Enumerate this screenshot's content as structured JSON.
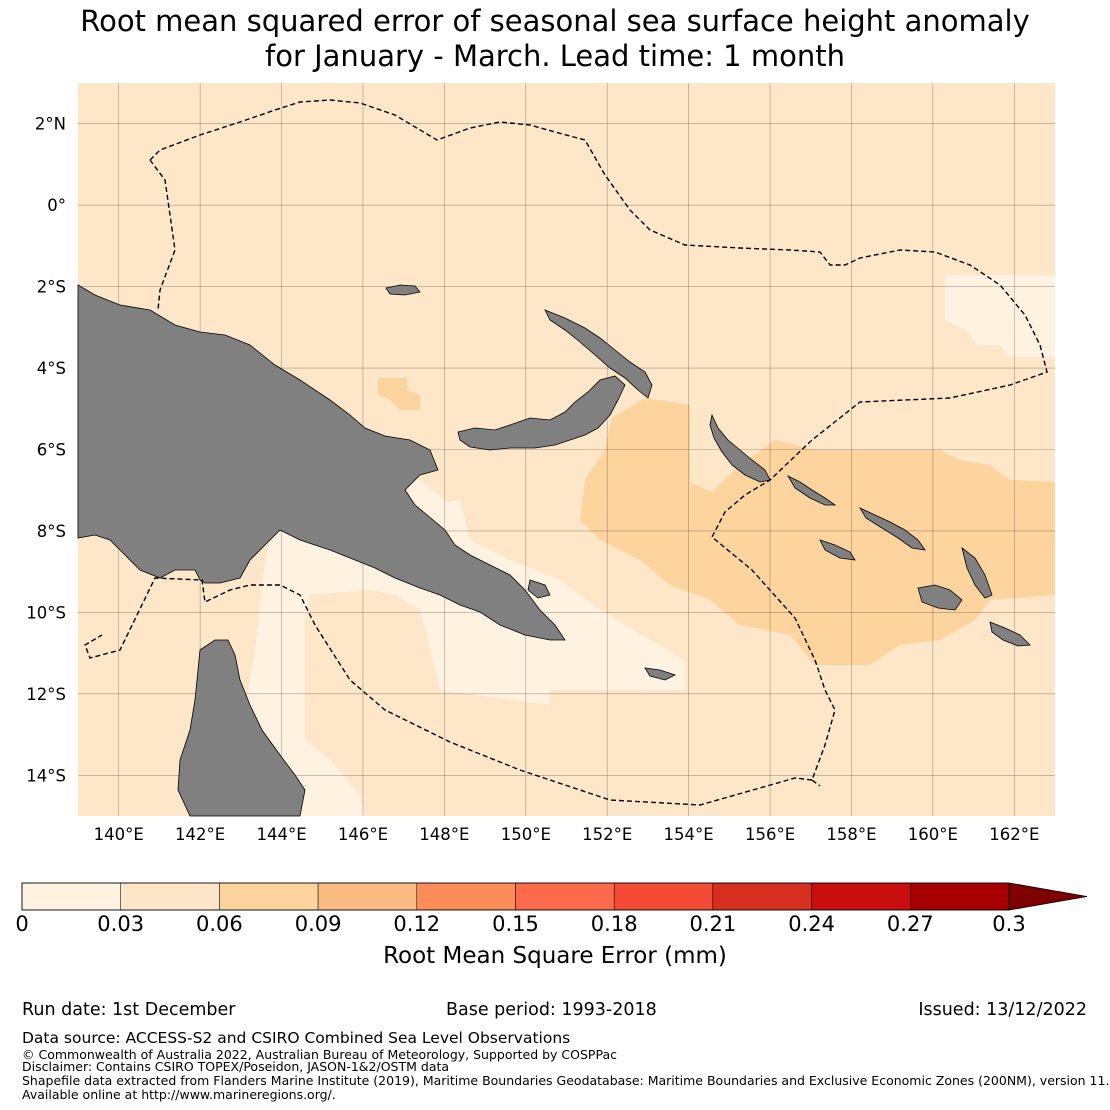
{
  "title": {
    "line1": "Root mean squared error of seasonal sea surface height anomaly",
    "line2": "for January - March. Lead time: 1 month"
  },
  "map": {
    "lon_labels": [
      "140°E",
      "142°E",
      "144°E",
      "146°E",
      "148°E",
      "150°E",
      "152°E",
      "154°E",
      "156°E",
      "158°E",
      "160°E",
      "162°E"
    ],
    "lat_labels": [
      "2°N",
      "0°",
      "2°S",
      "4°S",
      "6°S",
      "8°S",
      "10°S",
      "12°S",
      "14°S"
    ],
    "lon_range": [
      139,
      163
    ],
    "lat_range": [
      -15,
      3
    ],
    "land_color": "#808080",
    "boundary_style": "dashed"
  },
  "colorbar": {
    "ticks": [
      "0",
      "0.03",
      "0.06",
      "0.09",
      "0.12",
      "0.15",
      "0.18",
      "0.21",
      "0.24",
      "0.27",
      "0.3"
    ],
    "colors": [
      "#fff2e1",
      "#fee6c8",
      "#fdd49e",
      "#fdbb84",
      "#fc8d59",
      "#fb6a4a",
      "#f44b34",
      "#d7301f",
      "#c90e0e",
      "#a80000"
    ],
    "extend_color": "#7f0000",
    "label": "Root Mean Square Error (mm)"
  },
  "footer": {
    "run_date": "Run date: 1st December",
    "base_period": "Base period: 1993-2018",
    "issued": "Issued: 13/12/2022",
    "data_source": "Data source: ACCESS-S2 and CSIRO Combined Sea Level Observations",
    "copyright": "© Commonwealth of Australia 2022, Australian Bureau of Meteorology, Supported by COSPPac",
    "disclaimer": "Disclaimer: Contains CSIRO TOPEX/Poseidon, JASON-1&2/OSTM data",
    "shapefile": "Shapefile data extracted from Flanders Marine Institute (2019), Maritime Boundaries Geodatabase: Maritime Boundaries and Exclusive Economic Zones (200NM), version 11.",
    "available": "Available online at http://www.marineregions.org/."
  }
}
